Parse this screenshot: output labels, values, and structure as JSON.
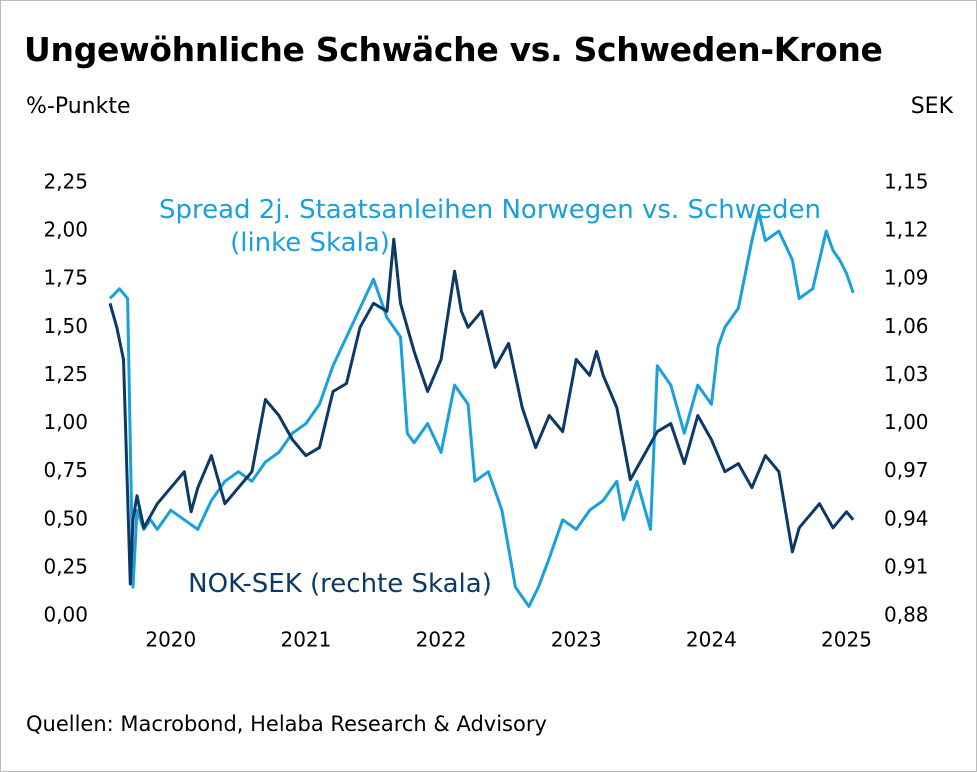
{
  "header": {
    "title": "Ungewöhnliche Schwäche vs. Schweden-Krone",
    "unit_left": "%-Punkte",
    "unit_right": "SEK"
  },
  "footer": {
    "source": "Quellen: Macrobond, Helaba Research & Advisory"
  },
  "colors": {
    "spread": "#1aa0dc",
    "noksek": "#0c3a66"
  },
  "chart_data": {
    "type": "line",
    "title": "Ungewöhnliche Schwäche vs. Schweden-Krone",
    "x_tick_labels": [
      "2020",
      "2021",
      "2022",
      "2023",
      "2024",
      "2025"
    ],
    "x_tick_values": [
      2020,
      2021,
      2022,
      2023,
      2024,
      2025
    ],
    "xlim": [
      2019.55,
      2025.1
    ],
    "y_left": {
      "label": "%-Punkte",
      "ylim": [
        0,
        2.25
      ],
      "tick_values": [
        0,
        0.25,
        0.5,
        0.75,
        1,
        1.25,
        1.5,
        1.75,
        2,
        2.25
      ],
      "tick_labels": [
        "0,00",
        "0,25",
        "0,50",
        "0,75",
        "1,00",
        "1,25",
        "1,50",
        "1,75",
        "2,00",
        "2,25"
      ]
    },
    "y_right": {
      "label": "SEK",
      "ylim": [
        0.88,
        1.15
      ],
      "tick_values": [
        0.88,
        0.91,
        0.94,
        0.97,
        1.0,
        1.03,
        1.06,
        1.09,
        1.12,
        1.15
      ],
      "tick_labels": [
        "0,88",
        "0,91",
        "0,94",
        "0,97",
        "1,00",
        "1,03",
        "1,06",
        "1,09",
        "1,12",
        "1,15"
      ]
    },
    "series": [
      {
        "name": "Spread 2j. Staatsanleihen Norwegen vs. Schweden",
        "legend_line1": "Spread 2j. Staatsanleihen Norwegen vs. Schweden",
        "legend_line2": "(linke Skala)",
        "axis": "left",
        "x": [
          2019.55,
          2019.62,
          2019.68,
          2019.72,
          2019.75,
          2019.8,
          2019.85,
          2019.9,
          2020.0,
          2020.1,
          2020.2,
          2020.3,
          2020.4,
          2020.5,
          2020.6,
          2020.7,
          2020.8,
          2020.9,
          2021.0,
          2021.1,
          2021.2,
          2021.3,
          2021.4,
          2021.5,
          2021.6,
          2021.7,
          2021.75,
          2021.8,
          2021.9,
          2022.0,
          2022.1,
          2022.2,
          2022.25,
          2022.35,
          2022.45,
          2022.55,
          2022.65,
          2022.72,
          2022.8,
          2022.9,
          2023.0,
          2023.1,
          2023.2,
          2023.3,
          2023.35,
          2023.45,
          2023.55,
          2023.6,
          2023.7,
          2023.8,
          2023.9,
          2024.0,
          2024.05,
          2024.1,
          2024.2,
          2024.3,
          2024.35,
          2024.4,
          2024.5,
          2024.6,
          2024.65,
          2024.75,
          2024.85,
          2024.9,
          2024.95,
          2025.0,
          2025.05
        ],
        "values": [
          1.65,
          1.7,
          1.65,
          0.15,
          0.55,
          0.45,
          0.5,
          0.45,
          0.55,
          0.5,
          0.45,
          0.6,
          0.7,
          0.75,
          0.7,
          0.8,
          0.85,
          0.95,
          1.0,
          1.1,
          1.3,
          1.45,
          1.6,
          1.75,
          1.55,
          1.45,
          0.95,
          0.9,
          1.0,
          0.85,
          1.2,
          1.1,
          0.7,
          0.75,
          0.55,
          0.15,
          0.05,
          0.15,
          0.3,
          0.5,
          0.45,
          0.55,
          0.6,
          0.7,
          0.5,
          0.7,
          0.45,
          1.3,
          1.2,
          0.95,
          1.2,
          1.1,
          1.4,
          1.5,
          1.6,
          1.95,
          2.1,
          1.95,
          2.0,
          1.85,
          1.65,
          1.7,
          2.0,
          1.9,
          1.85,
          1.78,
          1.68
        ]
      },
      {
        "name": "NOK-SEK",
        "legend_line1": "NOK-SEK (rechte Skala)",
        "axis": "right",
        "x": [
          2019.55,
          2019.6,
          2019.65,
          2019.7,
          2019.72,
          2019.75,
          2019.8,
          2019.9,
          2020.0,
          2020.1,
          2020.15,
          2020.2,
          2020.3,
          2020.4,
          2020.5,
          2020.6,
          2020.7,
          2020.8,
          2020.9,
          2021.0,
          2021.1,
          2021.2,
          2021.3,
          2021.4,
          2021.5,
          2021.6,
          2021.65,
          2021.7,
          2021.8,
          2021.9,
          2022.0,
          2022.1,
          2022.15,
          2022.2,
          2022.3,
          2022.4,
          2022.5,
          2022.6,
          2022.7,
          2022.8,
          2022.9,
          2023.0,
          2023.1,
          2023.15,
          2023.2,
          2023.3,
          2023.4,
          2023.5,
          2023.6,
          2023.7,
          2023.8,
          2023.9,
          2024.0,
          2024.1,
          2024.2,
          2024.3,
          2024.4,
          2024.5,
          2024.6,
          2024.65,
          2024.7,
          2024.75,
          2024.8,
          2024.9,
          2025.0,
          2025.05
        ],
        "values": [
          1.075,
          1.06,
          1.04,
          0.9,
          0.94,
          0.955,
          0.935,
          0.95,
          0.96,
          0.97,
          0.945,
          0.96,
          0.98,
          0.95,
          0.96,
          0.97,
          1.015,
          1.005,
          0.99,
          0.98,
          0.985,
          1.02,
          1.025,
          1.06,
          1.075,
          1.07,
          1.115,
          1.075,
          1.045,
          1.02,
          1.04,
          1.095,
          1.07,
          1.06,
          1.07,
          1.035,
          1.05,
          1.01,
          0.985,
          1.005,
          0.995,
          1.04,
          1.03,
          1.045,
          1.03,
          1.01,
          0.965,
          0.98,
          0.995,
          1.0,
          0.975,
          1.005,
          0.99,
          0.97,
          0.975,
          0.96,
          0.98,
          0.97,
          0.92,
          0.935,
          0.94,
          0.945,
          0.95,
          0.935,
          0.945,
          0.94
        ]
      }
    ]
  }
}
